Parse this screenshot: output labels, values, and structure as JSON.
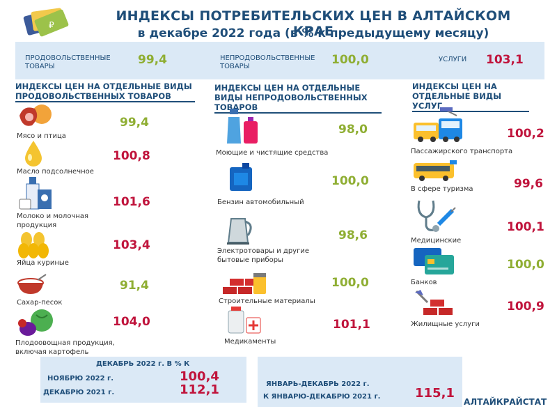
{
  "title": {
    "line1": "ИНДЕКСЫ ПОТРЕБИТЕЛЬСКИХ ЦЕН В АЛТАЙСКОМ КРАЕ",
    "line2": "в декабре 2022 года (в % к предыдущему месяцу)"
  },
  "summary": [
    {
      "label": "ПРОДОВОЛЬСТВЕННЫЕ ТОВАРЫ",
      "value": "99,4"
    },
    {
      "label": "НЕПРОДОВОЛЬСТВЕННЫЕ ТОВАРЫ",
      "value": "100,0"
    },
    {
      "label": "УСЛУГИ",
      "value": "103,1"
    }
  ],
  "food": {
    "header": "ИНДЕКСЫ ЦЕН НА ОТДЕЛЬНЫЕ ВИДЫ ПРОДОВОЛЬСТВЕННЫХ ТОВАРОВ",
    "items": [
      {
        "label": "Мясо и птица",
        "value": "99,4"
      },
      {
        "label": "Масло подсолнечное",
        "value": "100,8"
      },
      {
        "label": "Молоко и молочная продукция",
        "value": "101,6"
      },
      {
        "label": "Яйца куриные",
        "value": "103,4"
      },
      {
        "label": "Сахар-песок",
        "value": "91,4"
      },
      {
        "label": "Плодоовощная продукция, включая картофель",
        "value": "104,0"
      }
    ]
  },
  "nonfood": {
    "header": "ИНДЕКСЫ ЦЕН НА ОТДЕЛЬНЫЕ ВИДЫ НЕПРОДОВОЛЬСТВЕННЫХ ТОВАРОВ",
    "items": [
      {
        "label": "Моющие и чистящие средства",
        "value": "98,0"
      },
      {
        "label": "Бензин автомобильный",
        "value": "100,0"
      },
      {
        "label": "Электротовары и другие бытовые приборы",
        "value": "98,6"
      },
      {
        "label": "Строительные материалы",
        "value": "100,0"
      },
      {
        "label": "Медикаменты",
        "value": "101,1"
      }
    ]
  },
  "services": {
    "header": "ИНДЕКСЫ ЦЕН НА ОТДЕЛЬНЫЕ ВИДЫ УСЛУГ",
    "items": [
      {
        "label": "Пассажирского транспорта",
        "value": "100,2"
      },
      {
        "label": "В сфере туризма",
        "value": "99,6"
      },
      {
        "label": "Медицинские",
        "value": "100,1"
      },
      {
        "label": "Банков",
        "value": "100,0"
      },
      {
        "label": "Жилищные услуги",
        "value": "100,9"
      }
    ]
  },
  "bottom_left": {
    "header": "ДЕКАБРЬ 2022 г. В % К",
    "rows": [
      {
        "label": "НОЯБРЮ 2022 г.",
        "value": "100,4"
      },
      {
        "label": "ДЕКАБРЮ 2021 г.",
        "value": "112,1"
      }
    ]
  },
  "bottom_right": {
    "line1": "ЯНВАРЬ-ДЕКАБРЬ 2022 г.",
    "line2": "К ЯНВАРЮ-ДЕКАБРЮ 2021 г.",
    "value": "115,1"
  },
  "source": "АЛТАЙКРАЙСТАТ",
  "colors": {
    "green": "#8fae33",
    "red": "#c0143c",
    "navy": "#1f4e79",
    "panel": "#dbe9f6"
  },
  "icons": [
    "money-cards-icon",
    "meat-icon",
    "oil-drop-icon",
    "milk-icon",
    "eggs-icon",
    "sugar-bowl-icon",
    "vegetables-icon",
    "detergent-icon",
    "canister-icon",
    "kettle-icon",
    "bricks-icon",
    "medicine-icon",
    "bus-icon",
    "tourist-bus-icon",
    "stethoscope-icon",
    "bank-cards-icon",
    "housing-bricks-icon"
  ]
}
